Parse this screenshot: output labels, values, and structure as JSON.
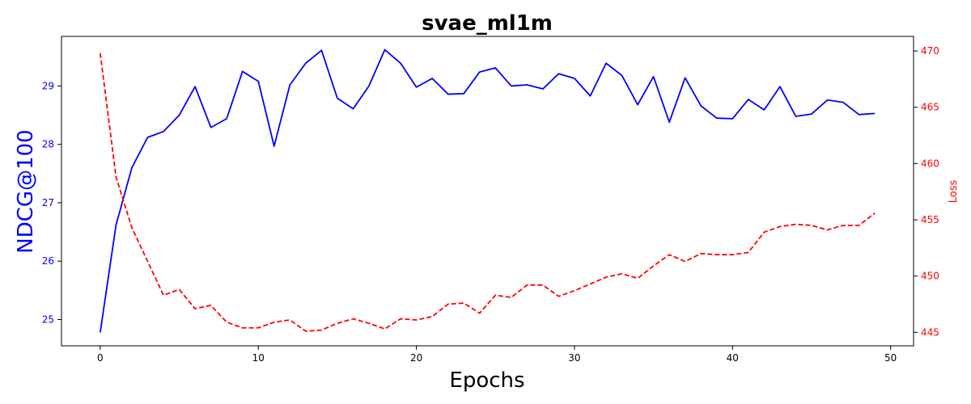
{
  "chart_data": {
    "type": "line",
    "title": "svae_ml1m",
    "xlabel": "Epochs",
    "ylabel_left": "NDCG@100",
    "ylabel_right": "Loss",
    "xlim": [
      -2.45,
      51.45
    ],
    "ylim_left": [
      24.55,
      29.85
    ],
    "ylim_right": [
      443.8,
      471.3
    ],
    "x_ticks": [
      0,
      10,
      20,
      30,
      40,
      50
    ],
    "y_left_ticks": [
      25,
      26,
      27,
      28,
      29
    ],
    "y_right_ticks": [
      445,
      450,
      455,
      460,
      465,
      470
    ],
    "grid": false,
    "legend": "none",
    "x": [
      0,
      1,
      2,
      3,
      4,
      5,
      6,
      7,
      8,
      9,
      10,
      11,
      12,
      13,
      14,
      15,
      16,
      17,
      18,
      19,
      20,
      21,
      22,
      23,
      24,
      25,
      26,
      27,
      28,
      29,
      30,
      31,
      32,
      33,
      34,
      35,
      36,
      37,
      38,
      39,
      40,
      41,
      42,
      43,
      44,
      45,
      46,
      47,
      48,
      49
    ],
    "series": [
      {
        "axis": "left",
        "color": "#0000ff",
        "style": "solid",
        "values": [
          24.78,
          26.62,
          27.6,
          28.12,
          28.22,
          28.5,
          28.99,
          28.29,
          28.44,
          29.25,
          29.08,
          27.97,
          29.02,
          29.39,
          29.61,
          28.79,
          28.61,
          29.0,
          29.62,
          29.39,
          28.98,
          29.13,
          28.86,
          28.87,
          29.24,
          29.31,
          29.0,
          29.02,
          28.95,
          29.21,
          29.13,
          28.83,
          29.39,
          29.18,
          28.68,
          29.16,
          28.38,
          29.14,
          28.66,
          28.45,
          28.44,
          28.77,
          28.59,
          28.99,
          28.48,
          28.52,
          28.76,
          28.72,
          28.51,
          28.53
        ]
      },
      {
        "axis": "right",
        "color": "#ff0000",
        "style": "dashed",
        "values": [
          469.8,
          458.8,
          454.3,
          451.3,
          448.3,
          448.8,
          447.1,
          447.4,
          445.9,
          445.4,
          445.4,
          445.9,
          446.1,
          445.1,
          445.2,
          445.8,
          446.2,
          445.8,
          445.3,
          446.2,
          446.1,
          446.4,
          447.5,
          447.6,
          446.7,
          448.3,
          448.1,
          449.2,
          449.2,
          448.2,
          448.7,
          449.3,
          449.9,
          450.2,
          449.8,
          450.9,
          451.9,
          451.3,
          452.0,
          451.9,
          451.9,
          452.1,
          453.9,
          454.4,
          454.6,
          454.5,
          454.1,
          454.5,
          454.5,
          455.6
        ]
      }
    ]
  }
}
